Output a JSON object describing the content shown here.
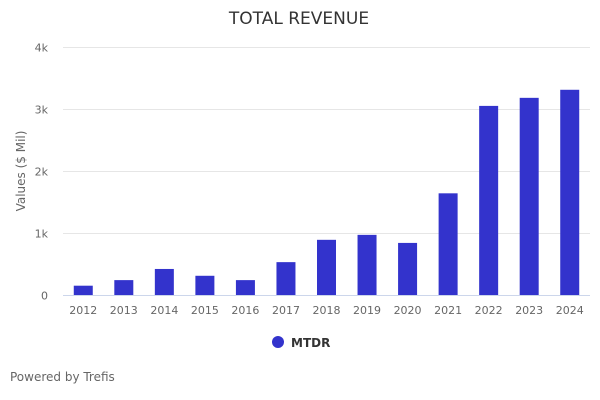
{
  "chart_data": {
    "type": "bar",
    "title": "TOTAL REVENUE",
    "xlabel": "",
    "ylabel": "Values ($ Mil)",
    "categories": [
      "2012",
      "2013",
      "2014",
      "2015",
      "2016",
      "2017",
      "2018",
      "2019",
      "2020",
      "2021",
      "2022",
      "2023",
      "2024"
    ],
    "series": [
      {
        "name": "MTDR",
        "color": "#3333cc",
        "values": [
          150,
          240,
          420,
          310,
          240,
          530,
          890,
          970,
          840,
          1640,
          3050,
          3180,
          3310
        ]
      }
    ],
    "ylim": [
      0,
      4000
    ],
    "yticks": [
      0,
      1000,
      2000,
      3000,
      4000
    ],
    "ytick_labels": [
      "0",
      "1k",
      "2k",
      "3k",
      "4k"
    ],
    "grid": true,
    "legend": "bottom-center"
  },
  "credit": "Powered by Trefis"
}
